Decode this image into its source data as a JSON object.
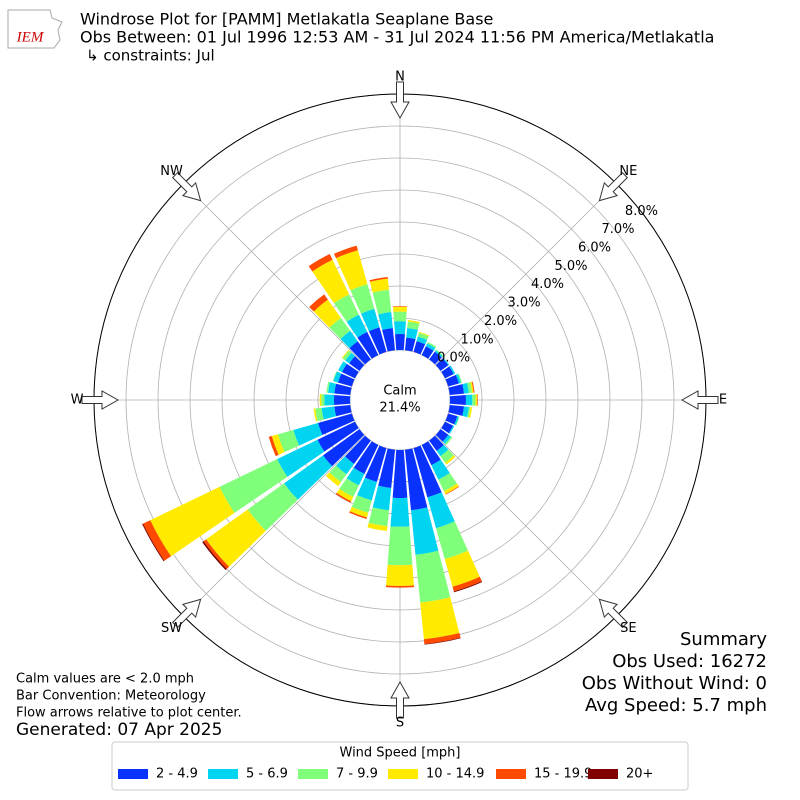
{
  "logo": "IEM",
  "chart_data": {
    "type": "windrose",
    "title": "Windrose Plot for [PAMM] Metlakatla Seaplane Base",
    "subtitle": "Obs Between: 01 Jul 1996 12:53 AM - 31 Jul 2024 11:56 PM America/Metlakatla",
    "constraints": "↳ constraints: Jul",
    "x": [
      0,
      10,
      20,
      30,
      40,
      50,
      60,
      70,
      80,
      90,
      100,
      110,
      120,
      130,
      140,
      150,
      160,
      170,
      180,
      190,
      200,
      210,
      220,
      230,
      240,
      250,
      260,
      270,
      280,
      290,
      300,
      310,
      320,
      330,
      340,
      350
    ],
    "xticks": [
      {
        "value": 0,
        "label": "N"
      },
      {
        "value": 45,
        "label": "NE"
      },
      {
        "value": 90,
        "label": "E"
      },
      {
        "value": 135,
        "label": "SE"
      },
      {
        "value": 180,
        "label": "S"
      },
      {
        "value": 225,
        "label": "SW"
      },
      {
        "value": 270,
        "label": "W"
      },
      {
        "value": 315,
        "label": "NW"
      }
    ],
    "ylim": [
      0,
      8
    ],
    "yticks": [
      {
        "value": 0,
        "label": "0.0%"
      },
      {
        "value": 1,
        "label": "1.0%"
      },
      {
        "value": 2,
        "label": "2.0%"
      },
      {
        "value": 3,
        "label": "3.0%"
      },
      {
        "value": 4,
        "label": "4.0%"
      },
      {
        "value": 5,
        "label": "5.0%"
      },
      {
        "value": 6,
        "label": "6.0%"
      },
      {
        "value": 7,
        "label": "7.0%"
      },
      {
        "value": 8,
        "label": "8.0%"
      }
    ],
    "grid": true,
    "series": [
      {
        "name": "2 - 4.9",
        "color": "#0a32ff",
        "values": [
          0.5,
          0.4,
          0.35,
          0.3,
          0.3,
          0.3,
          0.3,
          0.35,
          0.45,
          0.5,
          0.45,
          0.3,
          0.28,
          0.3,
          0.4,
          0.7,
          1.6,
          1.9,
          1.5,
          1.2,
          1.1,
          1.0,
          0.9,
          1.4,
          1.3,
          1.1,
          0.5,
          0.5,
          0.5,
          0.45,
          0.45,
          0.4,
          0.7,
          0.8,
          0.8,
          0.7
        ]
      },
      {
        "name": "5 - 6.9",
        "color": "#00d4f0",
        "values": [
          0.4,
          0.3,
          0.15,
          0.1,
          0.05,
          0.03,
          0.05,
          0.07,
          0.15,
          0.2,
          0.15,
          0.05,
          0.04,
          0.1,
          0.2,
          0.5,
          1.0,
          1.4,
          0.9,
          0.7,
          0.6,
          0.4,
          0.4,
          1.5,
          1.4,
          0.8,
          0.4,
          0.3,
          0.2,
          0.15,
          0.13,
          0.15,
          0.4,
          0.6,
          0.6,
          0.5
        ]
      },
      {
        "name": "7 - 9.9",
        "color": "#80ff7a",
        "values": [
          0.3,
          0.2,
          0.12,
          0.05,
          0.03,
          0,
          0,
          0.03,
          0.1,
          0.1,
          0.05,
          0.02,
          0,
          0.05,
          0.25,
          0.4,
          1.0,
          1.5,
          1.2,
          0.5,
          0.4,
          0.4,
          0.3,
          1.4,
          2.0,
          0.5,
          0.2,
          0.1,
          0.05,
          0.02,
          0,
          0.1,
          0.5,
          0.7,
          0.8,
          0.7
        ]
      },
      {
        "name": "10 - 14.9",
        "color": "#ffea00",
        "values": [
          0.15,
          0.05,
          0.03,
          0,
          0,
          0,
          0,
          0,
          0.05,
          0.05,
          0.05,
          0,
          0,
          0,
          0.07,
          0.1,
          0.9,
          1.15,
          0.65,
          0.15,
          0.15,
          0.15,
          0.15,
          1.6,
          2.4,
          0.2,
          0.05,
          0.05,
          0,
          0,
          0,
          0.03,
          0.7,
          1.2,
          1.1,
          0.35
        ]
      },
      {
        "name": "15 - 19.9",
        "color": "#ff4a00",
        "values": [
          0.02,
          0,
          0,
          0,
          0,
          0,
          0,
          0,
          0.03,
          0.02,
          0,
          0,
          0,
          0,
          0,
          0.02,
          0.15,
          0.15,
          0.05,
          0,
          0.05,
          0.05,
          0,
          0.1,
          0.25,
          0.1,
          0,
          0,
          0,
          0,
          0,
          0,
          0.2,
          0.2,
          0.15,
          0.05
        ]
      },
      {
        "name": "20+",
        "color": "#800000",
        "values": [
          0,
          0,
          0,
          0,
          0,
          0,
          0,
          0,
          0,
          0,
          0,
          0,
          0,
          0,
          0,
          0,
          0.03,
          0.02,
          0,
          0,
          0,
          0,
          0,
          0.05,
          0.03,
          0,
          0,
          0,
          0,
          0,
          0,
          0,
          0,
          0,
          0,
          0
        ]
      }
    ],
    "calm": {
      "label": "Calm",
      "value": 21.4,
      "value_label": "21.4%"
    },
    "legend": "lower center",
    "legend_title": "Wind Speed [mph]"
  },
  "notes": [
    "Calm values are < 2.0 mph",
    "Bar Convention: Meteorology",
    "Flow arrows relative to plot center."
  ],
  "generated": "Generated: 07 Apr 2025",
  "summary": [
    "Summary",
    "Obs Used: 16272",
    "Obs Without Wind: 0",
    "Avg Speed: 5.7 mph"
  ]
}
